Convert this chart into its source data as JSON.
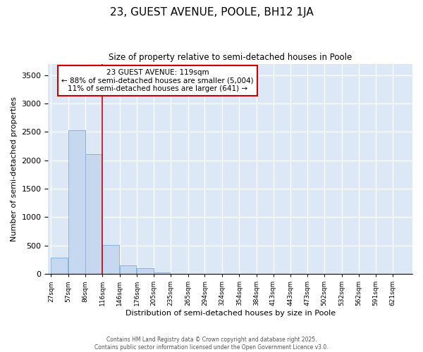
{
  "title": "23, GUEST AVENUE, POOLE, BH12 1JA",
  "subtitle": "Size of property relative to semi-detached houses in Poole",
  "xlabel": "Distribution of semi-detached houses by size in Poole",
  "ylabel": "Number of semi-detached properties",
  "bar_color": "#c5d8f0",
  "bar_edge_color": "#8ab4d8",
  "background_color": "#dce8f5",
  "grid_color": "#ffffff",
  "annotation_box_color": "#cc0000",
  "annotation_text_line1": "23 GUEST AVENUE: 119sqm",
  "annotation_text_line2": "← 88% of semi-detached houses are smaller (5,004)",
  "annotation_text_line3": "11% of semi-detached houses are larger (641) →",
  "footer_line1": "Contains HM Land Registry data © Crown copyright and database right 2025.",
  "footer_line2": "Contains public sector information licensed under the Open Government Licence v3.0.",
  "bin_labels": [
    "27sqm",
    "57sqm",
    "86sqm",
    "116sqm",
    "146sqm",
    "176sqm",
    "205sqm",
    "235sqm",
    "265sqm",
    "294sqm",
    "324sqm",
    "354sqm",
    "384sqm",
    "413sqm",
    "443sqm",
    "473sqm",
    "502sqm",
    "532sqm",
    "562sqm",
    "591sqm",
    "621sqm"
  ],
  "bin_left_edges": [
    27,
    57,
    86,
    116,
    146,
    176,
    205,
    235,
    265,
    294,
    324,
    354,
    384,
    413,
    443,
    473,
    502,
    532,
    562,
    591,
    621
  ],
  "bin_width": 29,
  "bar_heights": [
    290,
    2530,
    2110,
    510,
    155,
    95,
    30,
    5,
    0,
    0,
    0,
    0,
    0,
    0,
    0,
    0,
    0,
    0,
    0,
    0,
    0
  ],
  "ylim": [
    0,
    3700
  ],
  "yticks": [
    0,
    500,
    1000,
    1500,
    2000,
    2500,
    3000,
    3500
  ],
  "vline_x": 116,
  "vline_color": "#cc0000"
}
